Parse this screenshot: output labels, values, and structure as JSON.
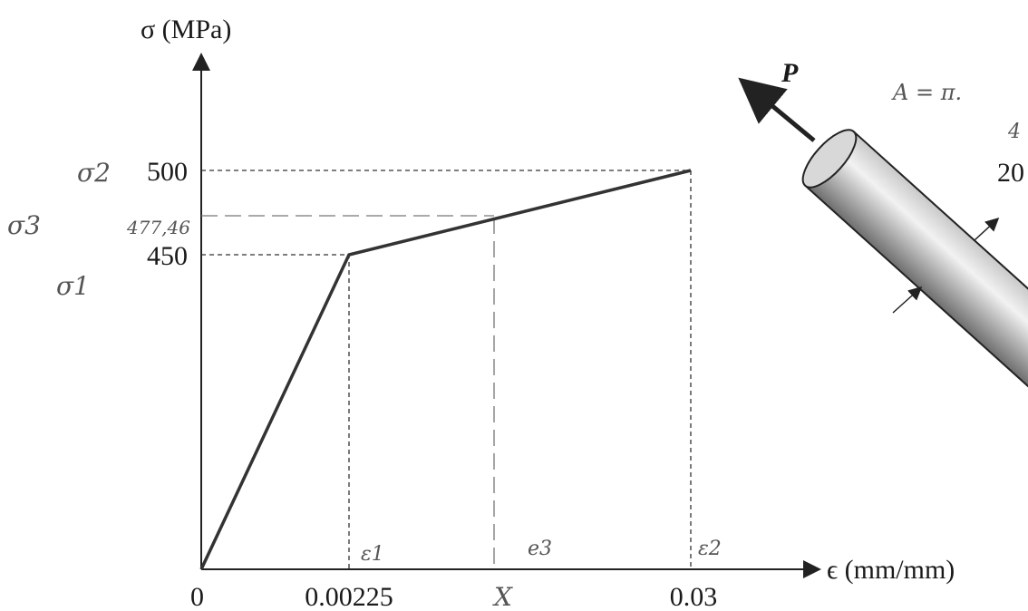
{
  "diagram": {
    "y_axis_label": "σ (MPa)",
    "x_axis_label": "ϵ (mm/mm)",
    "origin_label": "0",
    "x_labels": [
      "0.00225",
      "0.03"
    ],
    "y_labels": [
      "500",
      "450"
    ],
    "load_label": "P",
    "handwritten": {
      "sigma2": "σ2",
      "sigma3": "σ3",
      "sigma1": "σ1",
      "sigma3_value": "477,46",
      "eps1": "ε1",
      "eps3": "e3",
      "eps2": "ε2",
      "x_unknown": "X",
      "area_a": "A = π.",
      "area_den": "4",
      "diameter": "20"
    }
  }
}
